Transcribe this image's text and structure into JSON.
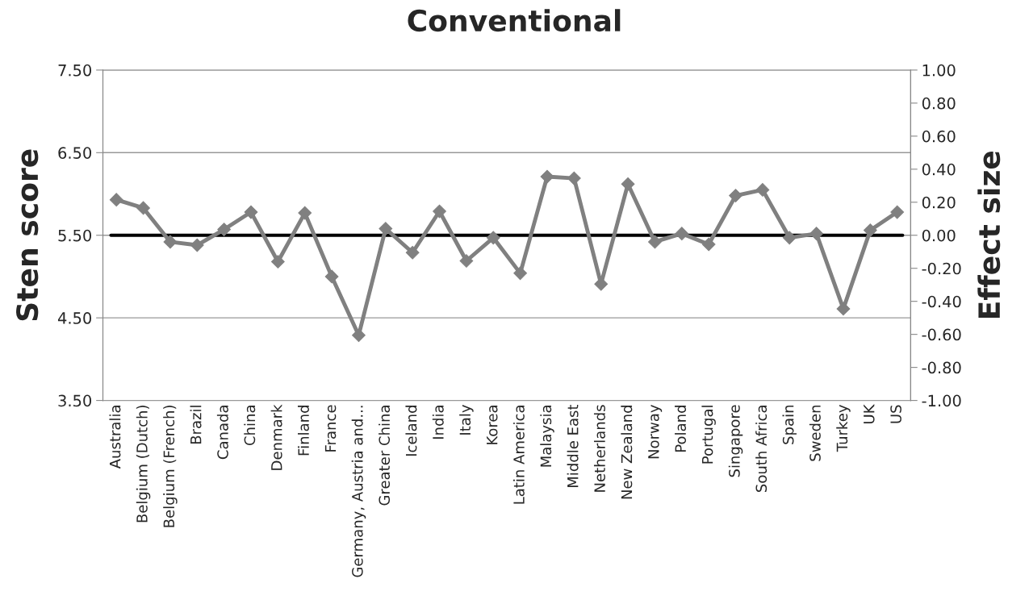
{
  "chart_data": {
    "type": "line",
    "title": "Conventional",
    "ylabel": "Sten score",
    "y2label": "Effect size",
    "categories": [
      "Australia",
      "Belgium (Dutch)",
      "Belgium (French)",
      "Brazil",
      "Canada",
      "China",
      "Denmark",
      "Finland",
      "France",
      "Germany, Austria and...",
      "Greater China",
      "Iceland",
      "India",
      "Italy",
      "Korea",
      "Latin America",
      "Malaysia",
      "Middle East",
      "Netherlands",
      "New Zealand",
      "Norway",
      "Poland",
      "Portugal",
      "Singapore",
      "South Africa",
      "Spain",
      "Sweden",
      "Turkey",
      "UK",
      "US"
    ],
    "series": [
      {
        "color": "#808080",
        "values": [
          5.93,
          5.83,
          5.42,
          5.38,
          5.57,
          5.78,
          5.18,
          5.77,
          5.0,
          4.29,
          5.58,
          5.29,
          5.79,
          5.19,
          5.47,
          5.04,
          6.21,
          6.19,
          4.91,
          6.12,
          5.42,
          5.52,
          5.39,
          5.98,
          6.05,
          5.47,
          5.52,
          4.61,
          5.56,
          5.78
        ]
      }
    ],
    "ylim": [
      3.5,
      7.5
    ],
    "yticks": [
      {
        "value": 3.5,
        "label": "3.50"
      },
      {
        "value": 4.5,
        "label": "4.50"
      },
      {
        "value": 5.5,
        "label": "5.50"
      },
      {
        "value": 6.5,
        "label": "6.50"
      },
      {
        "value": 7.5,
        "label": "7.50"
      }
    ],
    "y2lim": [
      -1.0,
      1.0
    ],
    "y2ticks": [
      {
        "value": -1.0,
        "label": "-1.00"
      },
      {
        "value": -0.8,
        "label": "-0.80"
      },
      {
        "value": -0.6,
        "label": "-0.60"
      },
      {
        "value": -0.4,
        "label": "-0.40"
      },
      {
        "value": -0.2,
        "label": "-0.20"
      },
      {
        "value": 0.0,
        "label": "0.00"
      },
      {
        "value": 0.2,
        "label": "0.20"
      },
      {
        "value": 0.4,
        "label": "0.40"
      },
      {
        "value": 0.6,
        "label": "0.60"
      },
      {
        "value": 0.8,
        "label": "0.80"
      },
      {
        "value": 1.0,
        "label": "1.00"
      }
    ],
    "ref_lines": [
      {
        "axis": "y",
        "value": 5.5,
        "color": "#000000"
      }
    ],
    "grid": "y",
    "marker": "diamond",
    "line_style": "solid"
  }
}
